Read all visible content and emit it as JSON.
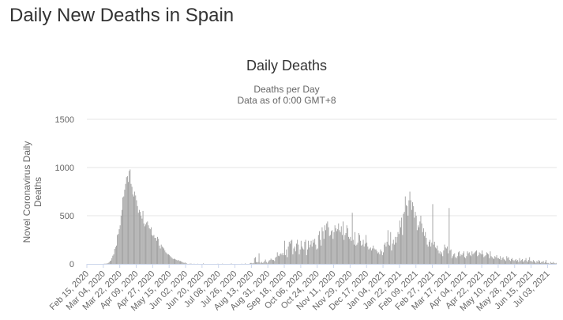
{
  "page": {
    "heading": "Daily New Deaths in Spain"
  },
  "colors": {
    "bar": "#999999",
    "grid": "#e6e6e6",
    "axis": "#ccd6eb",
    "text": "#666666",
    "title": "#333333"
  },
  "chart_data": {
    "type": "bar",
    "title": "Daily Deaths",
    "subtitle_lines": [
      "Deaths per Day",
      "Data as of 0:00 GMT+8"
    ],
    "xlabel": "",
    "ylabel_lines": [
      "Novel Coronavirus Daily",
      "Deaths"
    ],
    "ylim": [
      0,
      1500
    ],
    "yticks": [
      0,
      500,
      1000,
      1500
    ],
    "grid": true,
    "legend": "none",
    "x_start": "2020-02-15",
    "x_end": "2021-07-12",
    "xtick_labels": [
      "Feb 15, 2020",
      "Mar 04, 2020",
      "Mar 22, 2020",
      "Apr 09, 2020",
      "Apr 27, 2020",
      "May 15, 2020",
      "Jun 02, 2020",
      "Jun 20, 2020",
      "Jul 08, 2020",
      "Jul 26, 2020",
      "Aug 13, 2020",
      "Aug 31, 2020",
      "Sep 18, 2020",
      "Oct 06, 2020",
      "Oct 24, 2020",
      "Nov 11, 2020",
      "Nov 29, 2020",
      "Dec 17, 2020",
      "Jan 04, 2021",
      "Jan 22, 2021",
      "Feb 09, 2021",
      "Feb 27, 2021",
      "Mar 17, 2021",
      "Apr 04, 2021",
      "Apr 22, 2021",
      "May 10, 2021",
      "May 28, 2021",
      "Jun 15, 2021",
      "Jul 03, 2021"
    ],
    "daily_values_by_segment": [
      {
        "from": "Feb 15, 2020",
        "to": "Mar 03, 2020",
        "values": [
          0,
          0,
          0,
          0,
          0,
          0,
          0,
          0,
          0,
          0,
          0,
          0,
          0,
          0,
          0,
          0,
          0,
          0
        ]
      },
      {
        "from": "Mar 04, 2020",
        "to": "Mar 21, 2020",
        "values": [
          1,
          2,
          2,
          3,
          5,
          10,
          18,
          30,
          35,
          60,
          85,
          100,
          155,
          175,
          190,
          300,
          310,
          360
        ]
      },
      {
        "from": "Mar 22, 2020",
        "to": "Apr 08, 2020",
        "values": [
          400,
          500,
          560,
          690,
          700,
          770,
          830,
          900,
          910,
          850,
          965,
          980,
          830,
          800,
          720,
          700,
          750,
          710
        ]
      },
      {
        "from": "Apr 09, 2020",
        "to": "Apr 26, 2020",
        "values": [
          660,
          600,
          530,
          560,
          540,
          500,
          470,
          550,
          420,
          390,
          410,
          430,
          440,
          400,
          370,
          360,
          380,
          300
        ]
      },
      {
        "from": "Apr 27, 2020",
        "to": "May 14, 2020",
        "values": [
          290,
          300,
          270,
          270,
          240,
          280,
          260,
          190,
          160,
          200,
          180,
          170,
          160,
          140,
          120,
          110,
          100,
          100
        ]
      },
      {
        "from": "May 15, 2020",
        "to": "Jun 01, 2020",
        "values": [
          90,
          80,
          70,
          60,
          50,
          55,
          50,
          45,
          40,
          35,
          40,
          30,
          30,
          25,
          20,
          15,
          10,
          15
        ]
      },
      {
        "from": "Jun 02, 2020",
        "to": "Jun 19, 2020",
        "values": [
          5,
          5,
          0,
          0,
          2,
          3,
          2,
          0,
          0,
          2,
          0,
          0,
          0,
          2,
          0,
          0,
          0,
          0
        ]
      },
      {
        "from": "Jun 20, 2020",
        "to": "Jul 07, 2020",
        "values": [
          0,
          5,
          0,
          0,
          0,
          0,
          0,
          0,
          0,
          0,
          0,
          0,
          0,
          0,
          0,
          0,
          0,
          2
        ]
      },
      {
        "from": "Jul 08, 2020",
        "to": "Jul 25, 2020",
        "values": [
          0,
          0,
          0,
          0,
          3,
          0,
          0,
          0,
          0,
          0,
          0,
          0,
          0,
          2,
          3,
          0,
          0,
          0
        ]
      },
      {
        "from": "Jul 26, 2020",
        "to": "Aug 12, 2020",
        "values": [
          0,
          0,
          0,
          0,
          0,
          0,
          0,
          2,
          0,
          0,
          0,
          5,
          0,
          0,
          0,
          0,
          5,
          10
        ]
      },
      {
        "from": "Aug 13, 2020",
        "to": "Aug 30, 2020",
        "values": [
          10,
          5,
          10,
          60,
          70,
          20,
          15,
          20,
          110,
          15,
          5,
          20,
          10,
          15,
          30,
          45,
          20,
          5
        ]
      },
      {
        "from": "Aug 31, 2020",
        "to": "Sep 17, 2020",
        "values": [
          20,
          35,
          40,
          55,
          45,
          40,
          40,
          30,
          65,
          75,
          120,
          85,
          80,
          100,
          110,
          95,
          115,
          90
        ]
      },
      {
        "from": "Sep 18, 2020",
        "to": "Oct 05, 2020",
        "values": [
          240,
          90,
          150,
          70,
          180,
          230,
          210,
          240,
          250,
          100,
          160,
          180,
          130,
          210,
          250,
          200,
          100,
          150
        ]
      },
      {
        "from": "Oct 06, 2020",
        "to": "Oct 23, 2020",
        "values": [
          240,
          180,
          160,
          150,
          230,
          250,
          90,
          150,
          240,
          170,
          200,
          240,
          180,
          250,
          220,
          260,
          200,
          150
        ]
      },
      {
        "from": "Oct 24, 2020",
        "to": "Nov 10, 2020",
        "values": [
          160,
          300,
          340,
          250,
          190,
          380,
          340,
          260,
          400,
          350,
          420,
          440,
          380,
          290,
          300,
          340,
          350,
          260
        ]
      },
      {
        "from": "Nov 11, 2020",
        "to": "Nov 28, 2020",
        "values": [
          330,
          400,
          370,
          340,
          360,
          420,
          350,
          330,
          390,
          300,
          440,
          250,
          300,
          320,
          400,
          370,
          280,
          260
        ]
      },
      {
        "from": "Nov 29, 2020",
        "to": "Dec 16, 2020",
        "values": [
          280,
          240,
          530,
          250,
          200,
          330,
          190,
          200,
          220,
          320,
          300,
          240,
          190,
          200,
          250,
          180,
          210,
          300
        ]
      },
      {
        "from": "Dec 17, 2020",
        "to": "Jan 03, 2021",
        "values": [
          220,
          180,
          150,
          160,
          170,
          140,
          160,
          190,
          160,
          150,
          150,
          130,
          110,
          120,
          100,
          150,
          130,
          90
        ]
      },
      {
        "from": "Jan 04, 2021",
        "to": "Jan 21, 2021",
        "values": [
          120,
          200,
          220,
          180,
          230,
          350,
          200,
          190,
          330,
          140,
          210,
          250,
          200,
          280,
          220,
          280,
          330,
          310
        ]
      },
      {
        "from": "Jan 22, 2021",
        "to": "Feb 08, 2021",
        "values": [
          450,
          380,
          480,
          300,
          520,
          540,
          700,
          610,
          600,
          500,
          660,
          750,
          660,
          560,
          640,
          600,
          480,
          540
        ]
      },
      {
        "from": "Feb 09, 2021",
        "to": "Feb 26, 2021",
        "values": [
          500,
          350,
          400,
          380,
          440,
          500,
          420,
          330,
          370,
          290,
          330,
          270,
          200,
          180,
          230,
          250,
          180,
          220
        ]
      },
      {
        "from": "Feb 27, 2021",
        "to": "Mar 16, 2021",
        "values": [
          620,
          200,
          230,
          170,
          160,
          190,
          140,
          110,
          130,
          100,
          120,
          80,
          140,
          200,
          170,
          160,
          180,
          110
        ]
      },
      {
        "from": "Mar 17, 2021",
        "to": "Apr 03, 2021",
        "values": [
          580,
          140,
          150,
          60,
          80,
          100,
          110,
          70,
          60,
          80,
          120,
          130,
          80,
          100,
          90,
          110,
          130,
          70
        ]
      },
      {
        "from": "Apr 04, 2021",
        "to": "Apr 21, 2021",
        "values": [
          60,
          80,
          130,
          110,
          120,
          90,
          80,
          130,
          100,
          110,
          120,
          130,
          140,
          80,
          90,
          120,
          110,
          100
        ]
      },
      {
        "from": "Apr 22, 2021",
        "to": "May 09, 2021",
        "values": [
          140,
          100,
          70,
          80,
          90,
          120,
          110,
          100,
          60,
          130,
          80,
          70,
          60,
          50,
          80,
          70,
          90,
          60
        ]
      },
      {
        "from": "May 10, 2021",
        "to": "May 27, 2021",
        "values": [
          60,
          50,
          80,
          40,
          60,
          70,
          50,
          40,
          30,
          80,
          60,
          70,
          40,
          30,
          50,
          60,
          40,
          30
        ]
      },
      {
        "from": "May 28, 2021",
        "to": "Jun 14, 2021",
        "values": [
          40,
          50,
          30,
          40,
          20,
          60,
          30,
          40,
          50,
          20,
          30,
          40,
          60,
          30,
          20,
          40,
          70,
          30
        ]
      },
      {
        "from": "Jun 15, 2021",
        "to": "Jul 02, 2021",
        "values": [
          30,
          20,
          40,
          30,
          20,
          10,
          30,
          20,
          40,
          30,
          10,
          20,
          20,
          30,
          10,
          20,
          40,
          10
        ]
      },
      {
        "from": "Jul 03, 2021",
        "to": "Jul 12, 2021",
        "values": [
          10,
          10,
          0,
          20,
          10,
          10,
          20,
          10,
          5,
          10
        ]
      }
    ]
  }
}
